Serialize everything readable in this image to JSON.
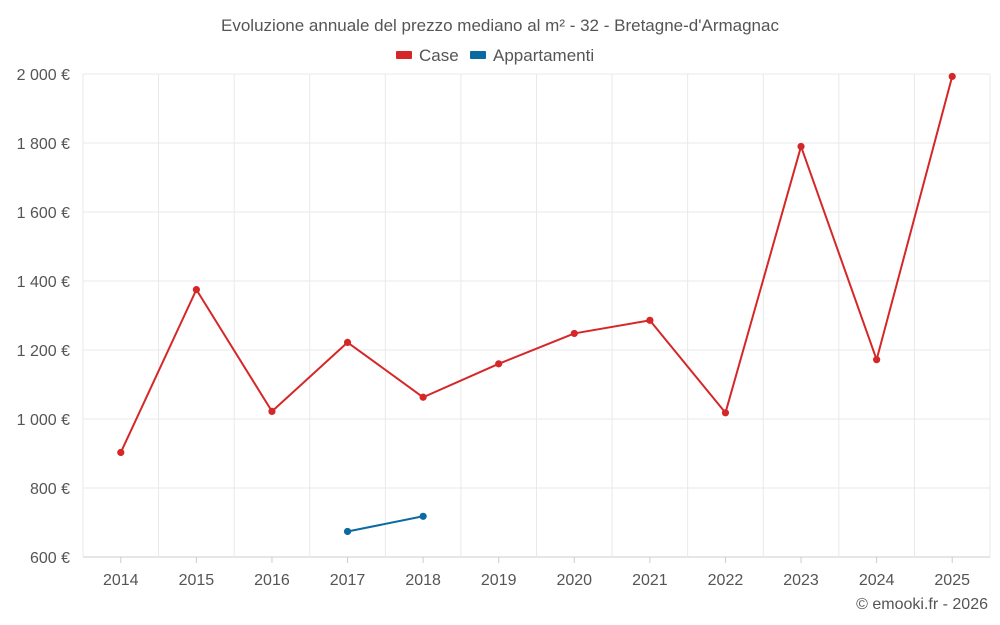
{
  "chart_data": {
    "type": "line",
    "title": "Evoluzione annuale del prezzo mediano al m² - 32 - Bretagne-d'Armagnac",
    "categories": [
      "2014",
      "2015",
      "2016",
      "2017",
      "2018",
      "2019",
      "2020",
      "2021",
      "2022",
      "2023",
      "2024",
      "2025"
    ],
    "series": [
      {
        "name": "Case",
        "color": "#d62728",
        "values": [
          903,
          1375,
          1022,
          1222,
          1063,
          1160,
          1248,
          1286,
          1018,
          1790,
          1172,
          1993
        ]
      },
      {
        "name": "Appartamenti",
        "color": "#0a6aa1",
        "values": [
          null,
          null,
          null,
          674,
          718,
          null,
          null,
          null,
          null,
          null,
          null,
          null
        ]
      }
    ],
    "yticks": [
      600,
      800,
      1000,
      1200,
      1400,
      1600,
      1800,
      2000
    ],
    "ytick_labels": [
      "600 €",
      "800 €",
      "1 000 €",
      "1 200 €",
      "1 400 €",
      "1 600 €",
      "1 800 €",
      "2 000 €"
    ],
    "ylim": [
      600,
      2000
    ],
    "xlabel": "",
    "ylabel": "",
    "grid": true,
    "legend_position": "top-center"
  },
  "credit": "© emooki.fr - 2026"
}
